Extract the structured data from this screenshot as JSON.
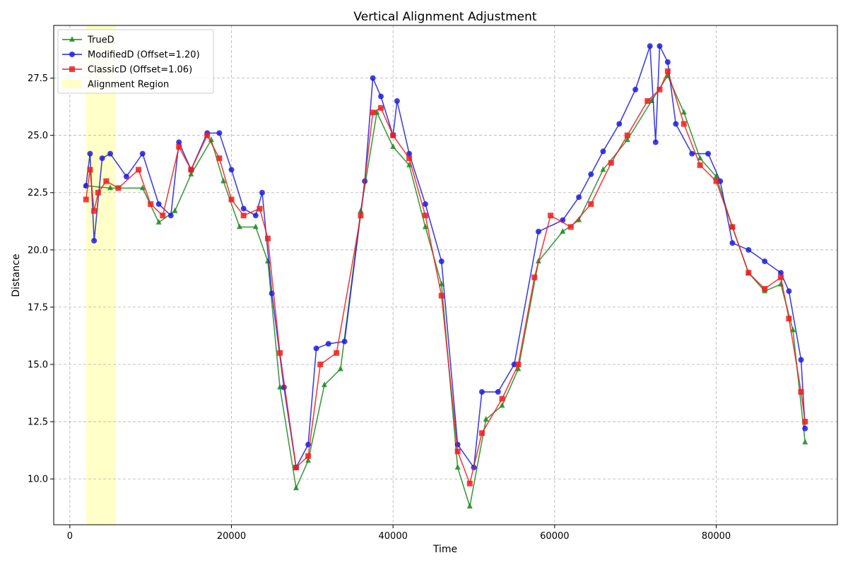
{
  "chart_data": {
    "type": "line",
    "title": "Vertical Alignment Adjustment",
    "xlabel": "Time",
    "ylabel": "Distance",
    "xlim": [
      -2000,
      95000
    ],
    "ylim": [
      8.0,
      29.8
    ],
    "xticks": [
      0,
      20000,
      40000,
      60000,
      80000
    ],
    "yticks": [
      10.0,
      12.5,
      15.0,
      17.5,
      20.0,
      22.5,
      25.0,
      27.5
    ],
    "grid": true,
    "legend_position": "top-left",
    "alignment_region": {
      "label": "Alignment Region",
      "x_start": 2000,
      "x_end": 5700,
      "color": "#ffff99"
    },
    "series": [
      {
        "name": "TrueD",
        "color": "#1f8a1f",
        "marker": "triangle",
        "x": [
          2000,
          5000,
          9000,
          11000,
          13000,
          15000,
          17500,
          19000,
          21000,
          23000,
          24500,
          26000,
          28000,
          29500,
          31500,
          33500,
          36000,
          38000,
          40000,
          42000,
          44000,
          46000,
          48000,
          49500,
          51500,
          53500,
          55500,
          58000,
          61000,
          63000,
          66000,
          69000,
          72000,
          74000,
          76000,
          78000,
          80000,
          82000,
          84000,
          86000,
          88000,
          89500,
          91000
        ],
        "y": [
          22.8,
          22.7,
          22.7,
          21.2,
          21.7,
          23.3,
          24.8,
          23.0,
          21.0,
          21.0,
          19.5,
          14.0,
          9.6,
          10.8,
          14.1,
          14.8,
          21.7,
          26.0,
          24.5,
          23.7,
          21.0,
          18.5,
          10.5,
          8.8,
          12.6,
          13.2,
          14.8,
          19.5,
          20.8,
          21.3,
          23.5,
          24.8,
          26.5,
          27.6,
          26.0,
          24.0,
          23.2,
          21.0,
          19.0,
          18.2,
          18.5,
          16.5,
          11.6
        ]
      },
      {
        "name": "ModifiedD (Offset=1.20)",
        "color": "#1f1fdd",
        "marker": "circle",
        "x": [
          2000,
          2500,
          3000,
          4000,
          5000,
          7000,
          9000,
          11000,
          12500,
          13500,
          15000,
          17000,
          18500,
          20000,
          21500,
          23000,
          23800,
          25000,
          26500,
          28000,
          29500,
          30500,
          32000,
          34000,
          36500,
          37500,
          38500,
          40000,
          40500,
          42000,
          44000,
          46000,
          48000,
          50000,
          51000,
          53000,
          55000,
          58000,
          61000,
          63000,
          64500,
          66000,
          68000,
          70000,
          71800,
          72500,
          73000,
          74000,
          75000,
          77000,
          79000,
          80500,
          82000,
          84000,
          86000,
          88000,
          89000,
          90500,
          91000
        ],
        "y": [
          22.8,
          24.2,
          20.4,
          24.0,
          24.2,
          23.2,
          24.2,
          22.0,
          21.5,
          24.7,
          23.5,
          25.1,
          25.1,
          23.5,
          21.8,
          21.5,
          22.5,
          18.1,
          14.0,
          10.5,
          11.5,
          15.7,
          15.9,
          16.0,
          23.0,
          27.5,
          26.7,
          25.0,
          26.5,
          24.2,
          22.0,
          19.5,
          11.5,
          10.5,
          13.8,
          13.8,
          15.0,
          20.8,
          21.3,
          22.3,
          23.3,
          24.3,
          25.5,
          27.0,
          28.9,
          24.7,
          28.9,
          28.2,
          25.5,
          24.2,
          24.2,
          23.0,
          20.3,
          20.0,
          19.5,
          19.0,
          18.2,
          15.2,
          12.2
        ]
      },
      {
        "name": "ClassicD (Offset=1.06)",
        "color": "#ee1f1f",
        "marker": "square",
        "x": [
          2000,
          2500,
          3000,
          3500,
          4500,
          6000,
          8500,
          10000,
          11500,
          13500,
          15000,
          17000,
          18500,
          20000,
          21500,
          23500,
          24500,
          26000,
          28000,
          29500,
          31000,
          33000,
          36000,
          37500,
          38500,
          40000,
          42000,
          44000,
          46000,
          48000,
          49500,
          51000,
          53500,
          55500,
          57500,
          59500,
          62000,
          64500,
          67000,
          69000,
          71500,
          73000,
          74000,
          76000,
          78000,
          80000,
          82000,
          84000,
          86000,
          88000,
          89000,
          90500,
          91000
        ],
        "y": [
          22.2,
          23.5,
          21.7,
          22.5,
          23.0,
          22.7,
          23.5,
          22.0,
          21.5,
          24.5,
          23.5,
          25.0,
          24.0,
          22.2,
          21.5,
          21.8,
          20.5,
          15.5,
          10.5,
          11.0,
          15.0,
          15.5,
          21.5,
          26.0,
          26.2,
          25.0,
          24.0,
          21.5,
          18.0,
          11.2,
          9.8,
          12.0,
          13.5,
          15.0,
          18.8,
          21.5,
          21.0,
          22.0,
          23.8,
          25.0,
          26.5,
          27.0,
          27.8,
          25.5,
          23.7,
          23.0,
          21.0,
          19.0,
          18.3,
          18.8,
          17.0,
          13.8,
          12.5
        ]
      }
    ]
  }
}
